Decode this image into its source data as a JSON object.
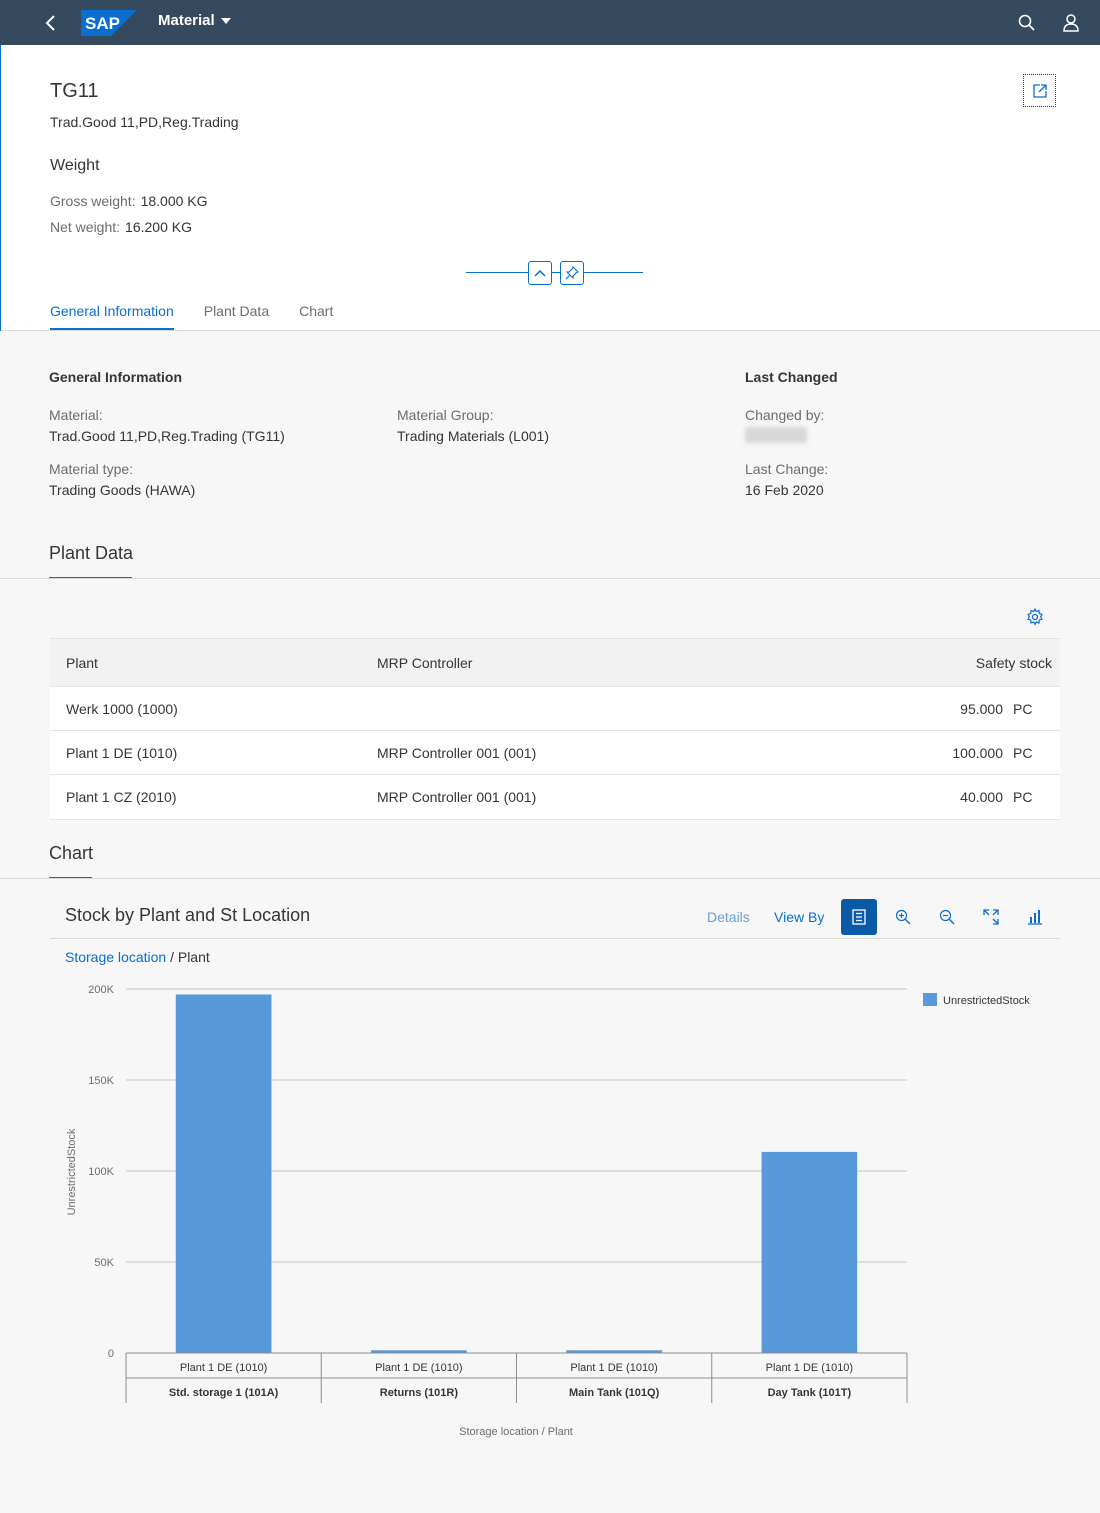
{
  "shell": {
    "title": "Material",
    "colors": {
      "bar": "#354a5f",
      "logo": "#0a6ed1"
    },
    "logo_text": "SAP"
  },
  "header": {
    "object_title": "TG11",
    "object_subtitle": "Trad.Good 11,PD,Reg.Trading",
    "weight_title": "Weight",
    "gross_weight_label": "Gross weight:",
    "gross_weight_value": "18.000 KG",
    "net_weight_label": "Net weight:",
    "net_weight_value": "16.200 KG",
    "tabs": [
      {
        "label": "General Information",
        "active": true
      },
      {
        "label": "Plant Data",
        "active": false
      },
      {
        "label": "Chart",
        "active": false
      }
    ]
  },
  "general": {
    "heading": "General Information",
    "material_label": "Material:",
    "material_value": "Trad.Good 11,PD,Reg.Trading (TG11)",
    "material_group_label": "Material Group:",
    "material_group_value": "Trading Materials (L001)",
    "material_type_label": "Material type:",
    "material_type_value": "Trading Goods (HAWA)",
    "last_changed_heading": "Last Changed",
    "changed_by_label": "Changed by:",
    "last_change_label": "Last Change:",
    "last_change_value": "16 Feb 2020"
  },
  "plant_data": {
    "title": "Plant Data",
    "columns": [
      "Plant",
      "MRP Controller",
      "Safety stock"
    ],
    "rows": [
      {
        "plant": "Werk 1000 (1000)",
        "mrp": "",
        "stock": "95.000",
        "unit": "PC"
      },
      {
        "plant": "Plant 1 DE (1010)",
        "mrp": "MRP Controller 001 (001)",
        "stock": "100.000",
        "unit": "PC"
      },
      {
        "plant": "Plant 1 CZ (2010)",
        "mrp": "MRP Controller 001 (001)",
        "stock": "40.000",
        "unit": "PC"
      }
    ]
  },
  "chart_section": {
    "title": "Chart",
    "card_title": "Stock by Plant and St Location",
    "details_label": "Details",
    "view_by_label": "View By",
    "breadcrumb_link": "Storage location",
    "breadcrumb_rest": " / Plant"
  },
  "chart_data": {
    "type": "bar",
    "categories": [
      {
        "plant": "Plant 1 DE (1010)",
        "location": "Std. storage 1 (101A)"
      },
      {
        "plant": "Plant 1 DE (1010)",
        "location": "Returns (101R)"
      },
      {
        "plant": "Plant 1 DE (1010)",
        "location": "Main Tank (101Q)"
      },
      {
        "plant": "Plant 1 DE (1010)",
        "location": "Day Tank (101T)"
      }
    ],
    "series": [
      {
        "name": "UnrestrictedStock",
        "values": [
          197000,
          1500,
          1500,
          110500
        ],
        "color": "#5899da"
      }
    ],
    "ylim": [
      0,
      200000
    ],
    "yticks": [
      0,
      50000,
      100000,
      150000,
      200000
    ],
    "ytick_labels": [
      "0",
      "50K",
      "100K",
      "150K",
      "200K"
    ],
    "xlabel": "Storage location / Plant",
    "ylabel": "UnrestrictedStock",
    "legend_position": "top-right",
    "grid": true
  }
}
